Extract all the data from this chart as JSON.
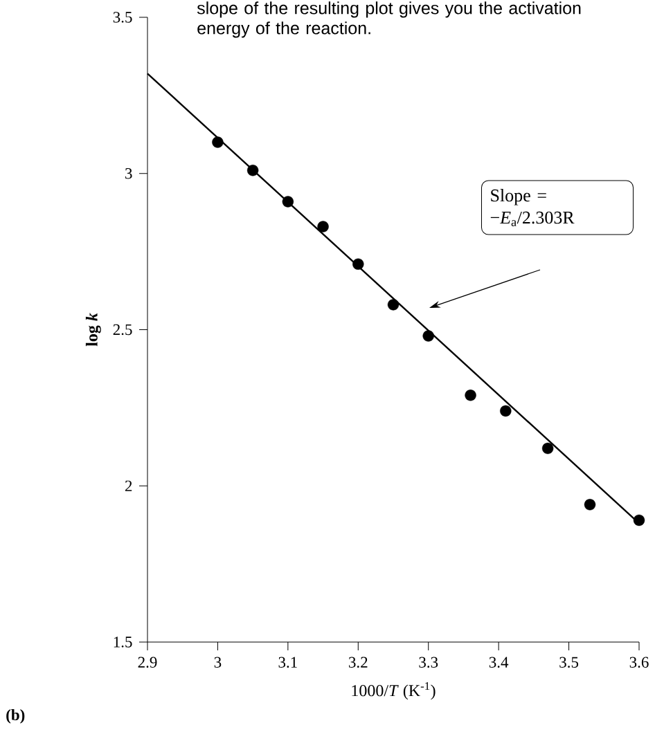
{
  "chart_data": {
    "type": "scatter",
    "xlabel": "1000/*T* (K$^{-1}$)",
    "ylabel": "log *k*",
    "xlim": [
      2.9,
      3.6
    ],
    "xticks": [
      2.9,
      3,
      3.1,
      3.2,
      3.3,
      3.4,
      3.5,
      3.6
    ],
    "ylim": [
      1.5,
      3.5
    ],
    "yticks": [
      1.5,
      2,
      2.5,
      3,
      3.5
    ],
    "series": [
      {
        "color": "#000000",
        "marker": "circle",
        "x": [
          3.0,
          3.05,
          3.1,
          3.15,
          3.2,
          3.25,
          3.3,
          3.36,
          3.41,
          3.47,
          3.53,
          3.6
        ],
        "values": [
          3.1,
          3.01,
          2.91,
          2.83,
          2.71,
          2.58,
          2.48,
          2.29,
          2.24,
          2.12,
          1.94,
          1.89
        ]
      },
      {
        "type": "line",
        "color": "#000000",
        "marker": "none",
        "line_style": "solid",
        "x": [
          2.9,
          3.6
        ],
        "values": [
          3.32,
          1.88
        ]
      }
    ],
    "annotations": [
      "slope of the resulting plot gives you the activation energy of the reaction.",
      "Slope = −*E*$_{a}$/2.303R",
      "(b)"
    ]
  }
}
